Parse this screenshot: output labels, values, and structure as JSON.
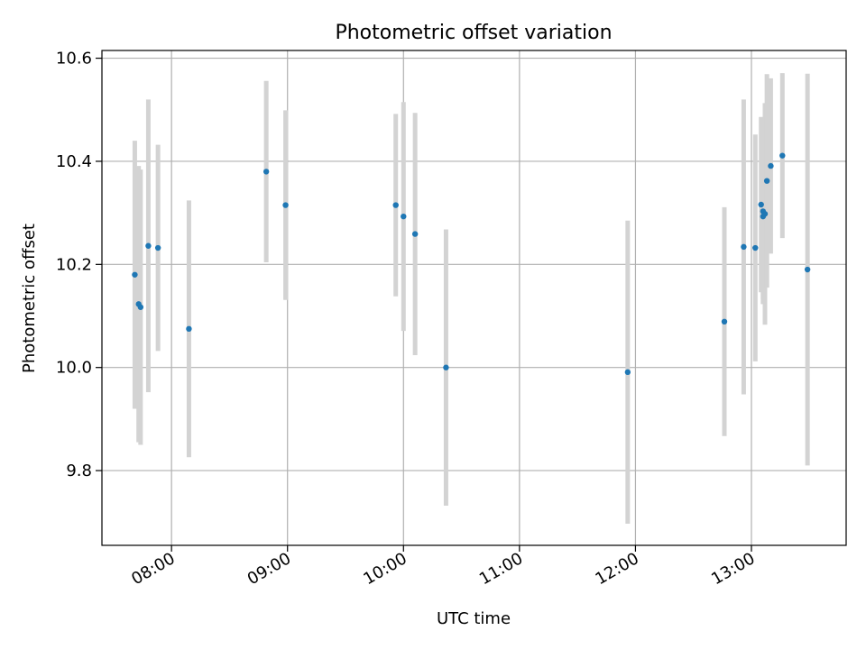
{
  "chart_data": {
    "type": "scatter",
    "title": "Photometric offset variation",
    "xlabel": "UTC time",
    "ylabel": "Photometric offset",
    "x_axis_type": "time",
    "xlim": [
      "07:24",
      "13:49"
    ],
    "ylim": [
      9.655,
      10.615
    ],
    "x_ticks": [
      "08:00",
      "09:00",
      "10:00",
      "11:00",
      "12:00",
      "13:00"
    ],
    "y_ticks": [
      "9.8",
      "10.0",
      "10.2",
      "10.4",
      "10.6"
    ],
    "grid": true,
    "colors": {
      "point": "#1f77b4",
      "errorbar": "#d3d3d3",
      "grid": "#b0b0b0"
    },
    "points": [
      {
        "x": "07:41",
        "y": 10.18,
        "err": 0.26
      },
      {
        "x": "07:43",
        "y": 10.123,
        "err": 0.268
      },
      {
        "x": "07:44",
        "y": 10.117,
        "err": 0.267
      },
      {
        "x": "07:48",
        "y": 10.236,
        "err": 0.284
      },
      {
        "x": "07:53",
        "y": 10.232,
        "err": 0.2
      },
      {
        "x": "08:09",
        "y": 10.075,
        "err": 0.249
      },
      {
        "x": "08:49",
        "y": 10.38,
        "err": 0.176
      },
      {
        "x": "08:59",
        "y": 10.315,
        "err": 0.184
      },
      {
        "x": "09:56",
        "y": 10.315,
        "err": 0.177
      },
      {
        "x": "10:00",
        "y": 10.293,
        "err": 0.222
      },
      {
        "x": "10:06",
        "y": 10.259,
        "err": 0.235
      },
      {
        "x": "10:22",
        "y": 10.0,
        "err": 0.268
      },
      {
        "x": "11:56",
        "y": 9.991,
        "err": 0.294
      },
      {
        "x": "12:46",
        "y": 10.089,
        "err": 0.222
      },
      {
        "x": "12:56",
        "y": 10.234,
        "err": 0.286
      },
      {
        "x": "13:02",
        "y": 10.232,
        "err": 0.22
      },
      {
        "x": "13:05",
        "y": 10.316,
        "err": 0.17
      },
      {
        "x": "13:06",
        "y": 10.303,
        "err": 0.17
      },
      {
        "x": "13:06",
        "y": 10.293,
        "err": 0.17
      },
      {
        "x": "13:07",
        "y": 10.298,
        "err": 0.215
      },
      {
        "x": "13:08",
        "y": 10.362,
        "err": 0.207
      },
      {
        "x": "13:10",
        "y": 10.391,
        "err": 0.17
      },
      {
        "x": "13:16",
        "y": 10.411,
        "err": 0.16
      },
      {
        "x": "13:29",
        "y": 10.19,
        "err": 0.38
      }
    ]
  }
}
